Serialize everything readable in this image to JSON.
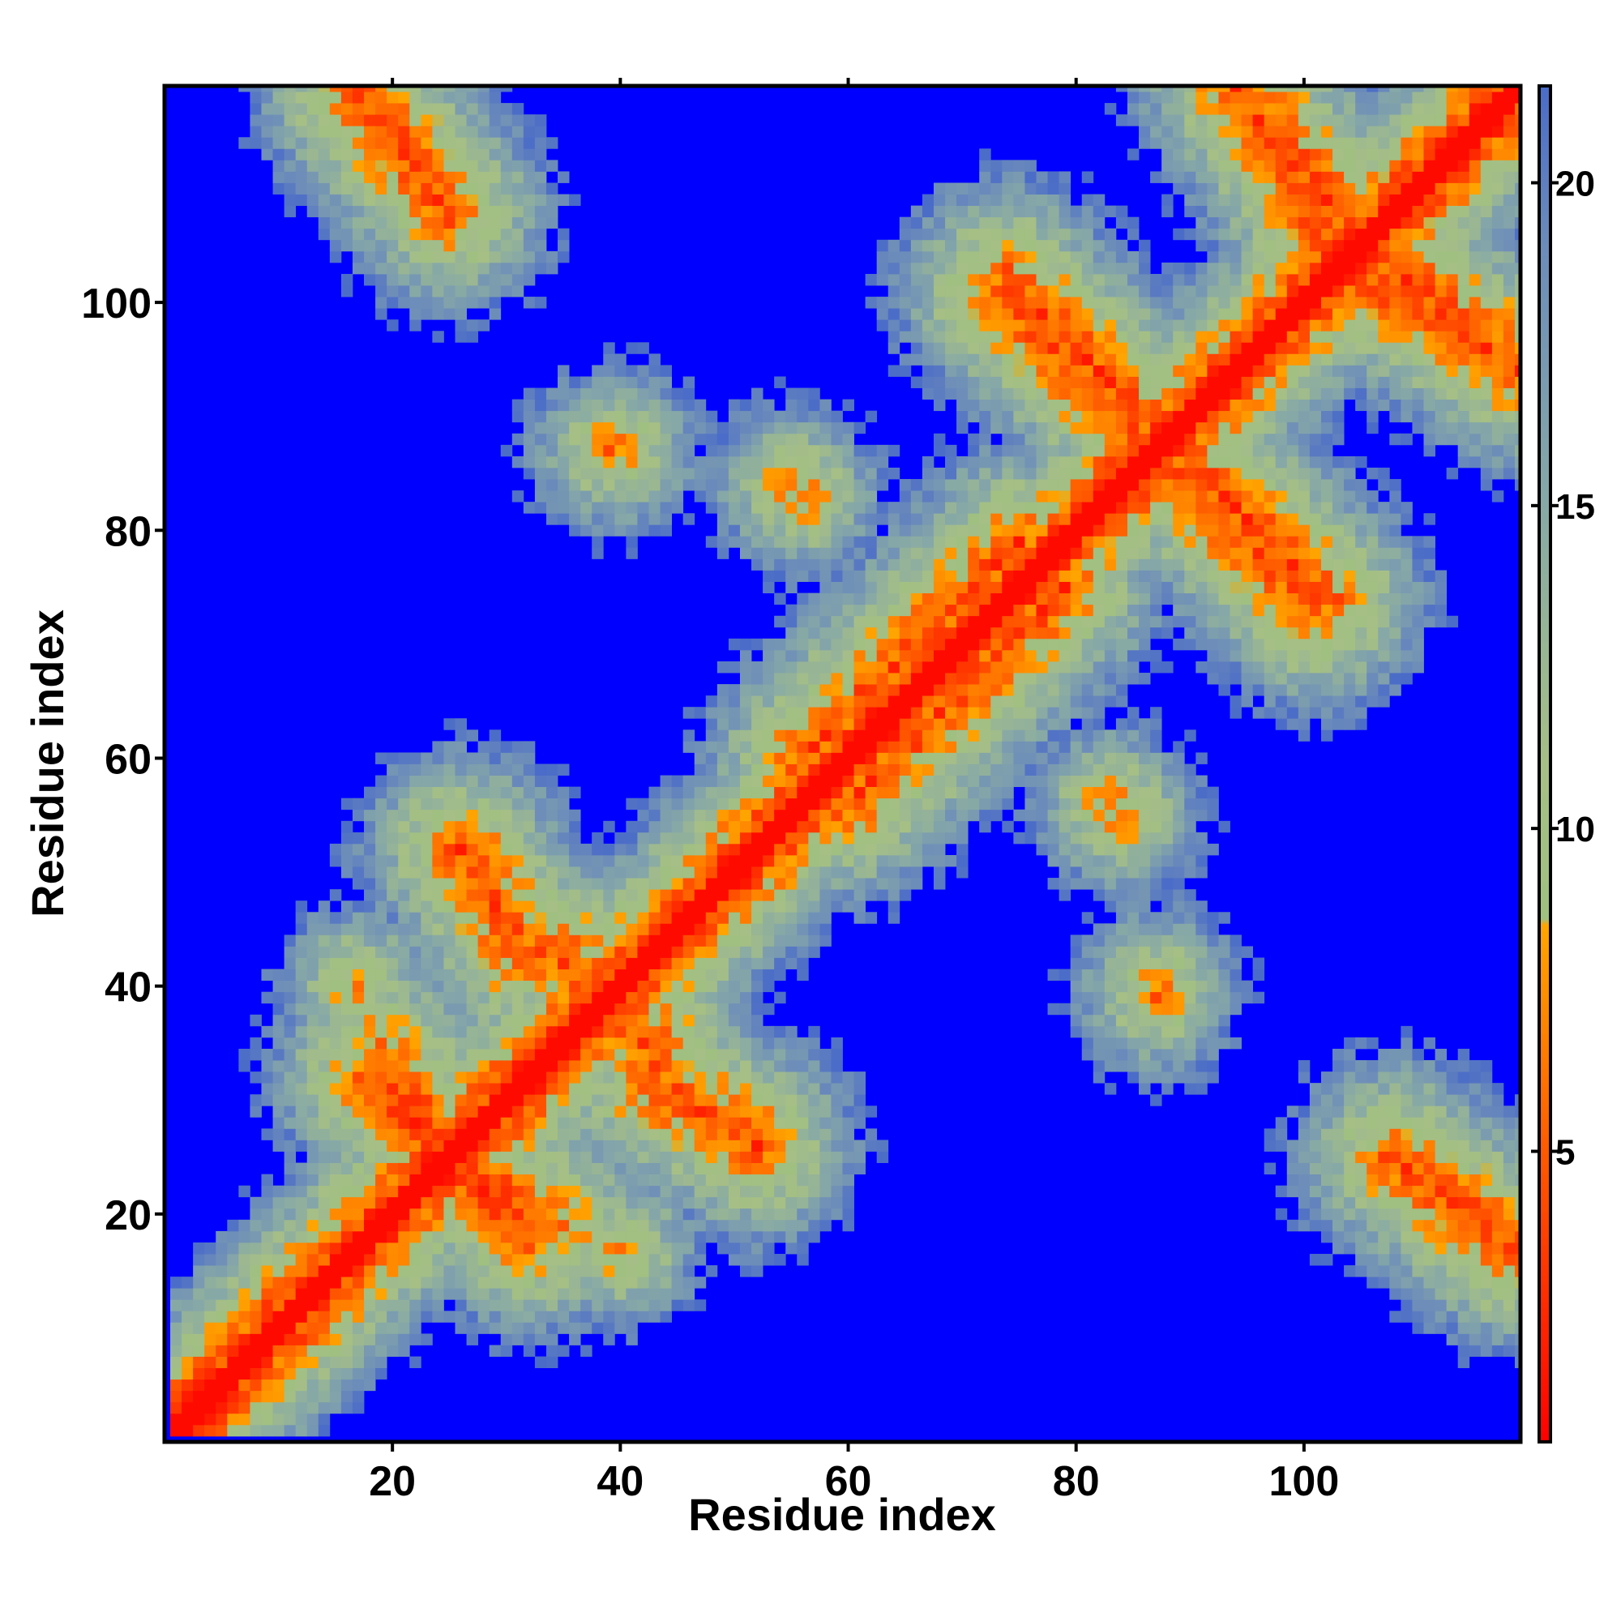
{
  "chart_data": {
    "type": "heatmap",
    "title": "",
    "xlabel": "Residue index",
    "ylabel": "Residue index",
    "x_range": [
      1,
      119
    ],
    "y_range": [
      1,
      119
    ],
    "x_ticks": [
      20,
      40,
      60,
      80,
      100
    ],
    "y_ticks": [
      20,
      40,
      60,
      80,
      100
    ],
    "colorbar": {
      "range": [
        0.5,
        21.5
      ],
      "ticks": [
        5,
        10,
        15,
        20
      ],
      "stops": [
        {
          "value": 0.5,
          "color": "#ff0000"
        },
        {
          "value": 5,
          "color": "#ff5a00"
        },
        {
          "value": 8.5,
          "color": "#ffa500"
        },
        {
          "value": 8.6,
          "color": "#9fc080"
        },
        {
          "value": 11,
          "color": "#a6bf86"
        },
        {
          "value": 15,
          "color": "#87a9a6"
        },
        {
          "value": 19,
          "color": "#6c8cba"
        },
        {
          "value": 21.5,
          "color": "#4a6bc8"
        }
      ],
      "saturation_color": "#0000ff"
    },
    "value_description": "pairwise residue distance map; diagonal ≈ 1, high values saturate blue",
    "structural_features": {
      "main_diagonal": {
        "from": 1,
        "to": 119
      },
      "antiparallel_contacts": [
        {
          "x": [
            17,
            24
          ],
          "y": [
            119,
            109
          ]
        },
        {
          "x": [
            94,
            103
          ],
          "y": [
            119,
            108
          ]
        },
        {
          "x": [
            102,
            118
          ],
          "y": [
            104,
            95
          ]
        },
        {
          "x": [
            87,
            101
          ],
          "y": [
            87,
            73
          ]
        },
        {
          "x": [
            74,
            88
          ],
          "y": [
            102,
            88
          ]
        },
        {
          "x": [
            19,
            25
          ],
          "y": [
            34,
            25
          ]
        },
        {
          "x": [
            25,
            32
          ],
          "y": [
            25,
            18
          ]
        },
        {
          "x": [
            43,
            51
          ],
          "y": [
            31,
            27
          ]
        },
        {
          "x": [
            33,
            43
          ],
          "y": [
            44,
            35
          ]
        },
        {
          "x": [
            108,
            118
          ],
          "y": [
            25,
            17
          ]
        },
        {
          "x": [
            26,
            30
          ],
          "y": [
            52,
            46
          ]
        }
      ],
      "parallel_contacts": [
        {
          "x": [
            56,
            75
          ],
          "y": [
            60,
            79
          ]
        }
      ],
      "local_clusters": [
        {
          "x": 39,
          "y": 87
        },
        {
          "x": 55,
          "y": 84
        },
        {
          "x": 83,
          "y": 56
        },
        {
          "x": 87,
          "y": 40
        },
        {
          "x": 40,
          "y": 17
        }
      ]
    }
  }
}
